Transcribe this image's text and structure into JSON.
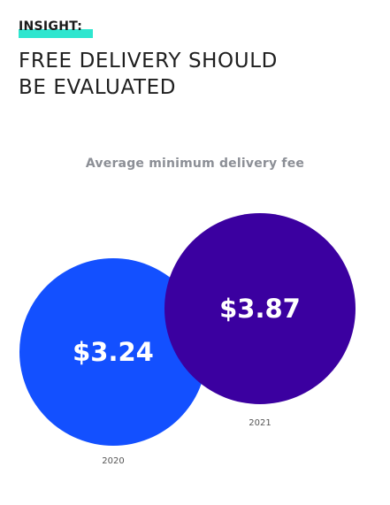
{
  "eyebrow": "INSIGHT:",
  "headline_lines": [
    "FREE DELIVERY SHOULD",
    "BE EVALUATED"
  ],
  "colors": {
    "accent": "#2ee6cf",
    "bubble_2020": "#1350ff",
    "bubble_2021": "#3b00a0"
  },
  "chart_data": {
    "type": "bubble",
    "title": "Average minimum delivery fee",
    "points": [
      {
        "x": "2020",
        "value": 3.24,
        "label": "$3.24"
      },
      {
        "x": "2021",
        "value": 3.87,
        "label": "$3.87"
      }
    ]
  }
}
